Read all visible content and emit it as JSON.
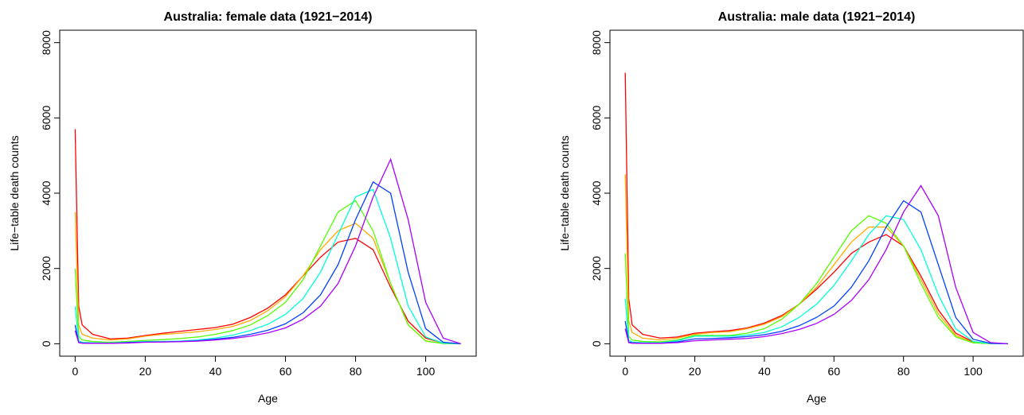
{
  "chart_data": [
    {
      "type": "line",
      "title": "Australia: female data (1921−2014)",
      "xlabel": "Age",
      "ylabel": "Life−table death counts",
      "x": [
        0,
        1,
        2,
        5,
        10,
        15,
        20,
        25,
        30,
        35,
        40,
        45,
        50,
        55,
        60,
        65,
        70,
        75,
        80,
        85,
        90,
        95,
        100,
        105,
        110
      ],
      "xlim": [
        -4.4,
        114.4
      ],
      "ylim": [
        -330,
        8330
      ],
      "xticks": [
        0,
        20,
        40,
        60,
        80,
        100
      ],
      "yticks": [
        0,
        2000,
        4000,
        6000,
        8000
      ],
      "series": [
        {
          "color": "#FF0000",
          "values": [
            5700,
            1000,
            500,
            250,
            130,
            150,
            220,
            280,
            330,
            380,
            430,
            520,
            700,
            950,
            1300,
            1800,
            2300,
            2700,
            2800,
            2500,
            1500,
            600,
            150,
            20,
            0
          ]
        },
        {
          "color": "#FFAA00",
          "values": [
            3500,
            500,
            250,
            150,
            100,
            130,
            200,
            250,
            280,
            320,
            380,
            460,
            620,
            880,
            1250,
            1800,
            2500,
            3000,
            3200,
            2800,
            1600,
            500,
            80,
            5,
            0
          ]
        },
        {
          "color": "#55FF00",
          "values": [
            2000,
            200,
            100,
            60,
            40,
            60,
            90,
            110,
            140,
            180,
            250,
            350,
            500,
            750,
            1100,
            1700,
            2600,
            3500,
            3800,
            3000,
            1600,
            500,
            70,
            5,
            0
          ]
        },
        {
          "color": "#00FFD5",
          "values": [
            1000,
            80,
            40,
            25,
            20,
            40,
            60,
            60,
            70,
            100,
            150,
            230,
            350,
            520,
            780,
            1200,
            1900,
            2900,
            3900,
            4100,
            2800,
            1000,
            180,
            15,
            0
          ]
        },
        {
          "color": "#0040FF",
          "values": [
            500,
            40,
            20,
            15,
            12,
            30,
            45,
            50,
            60,
            80,
            120,
            170,
            250,
            360,
            530,
            820,
            1300,
            2100,
            3300,
            4300,
            4000,
            1900,
            400,
            40,
            0
          ]
        },
        {
          "color": "#AA00FF",
          "values": [
            350,
            30,
            15,
            10,
            10,
            20,
            40,
            45,
            55,
            70,
            100,
            140,
            200,
            290,
            420,
            650,
            1000,
            1600,
            2600,
            3900,
            4900,
            3300,
            1100,
            150,
            0
          ]
        }
      ]
    },
    {
      "type": "line",
      "title": "Australia: male data (1921−2014)",
      "xlabel": "Age",
      "ylabel": "Life−table death counts",
      "x": [
        0,
        1,
        2,
        5,
        10,
        15,
        20,
        25,
        30,
        35,
        40,
        45,
        50,
        55,
        60,
        65,
        70,
        75,
        80,
        85,
        90,
        95,
        100,
        105,
        110
      ],
      "xlim": [
        -4.4,
        114.4
      ],
      "ylim": [
        -330,
        8330
      ],
      "xticks": [
        0,
        20,
        40,
        60,
        80,
        100
      ],
      "yticks": [
        0,
        2000,
        4000,
        6000,
        8000
      ],
      "series": [
        {
          "color": "#FF0000",
          "values": [
            7200,
            1200,
            500,
            250,
            150,
            180,
            280,
            320,
            350,
            420,
            550,
            750,
            1050,
            1450,
            1900,
            2400,
            2700,
            2900,
            2600,
            1800,
            900,
            280,
            50,
            5,
            0
          ]
        },
        {
          "color": "#FFAA00",
          "values": [
            4500,
            600,
            300,
            150,
            100,
            150,
            250,
            300,
            320,
            400,
            520,
            720,
            1050,
            1500,
            2100,
            2700,
            3100,
            3100,
            2600,
            1700,
            800,
            220,
            30,
            2,
            0
          ]
        },
        {
          "color": "#55FF00",
          "values": [
            2400,
            200,
            100,
            60,
            50,
            100,
            220,
            220,
            220,
            280,
            400,
            650,
            1050,
            1600,
            2300,
            3000,
            3400,
            3200,
            2600,
            1600,
            700,
            180,
            25,
            2,
            0
          ]
        },
        {
          "color": "#00FFD5",
          "values": [
            1200,
            90,
            45,
            30,
            25,
            80,
            200,
            200,
            200,
            230,
            300,
            450,
            700,
            1050,
            1550,
            2200,
            2900,
            3400,
            3300,
            2500,
            1300,
            400,
            60,
            5,
            0
          ]
        },
        {
          "color": "#0040FF",
          "values": [
            600,
            45,
            25,
            15,
            15,
            50,
            130,
            140,
            160,
            190,
            240,
            330,
            480,
            700,
            1000,
            1500,
            2200,
            3100,
            3800,
            3500,
            2100,
            700,
            120,
            10,
            0
          ]
        },
        {
          "color": "#AA00FF",
          "values": [
            400,
            30,
            15,
            10,
            10,
            30,
            80,
            100,
            120,
            140,
            190,
            270,
            380,
            540,
            780,
            1150,
            1700,
            2500,
            3500,
            4200,
            3400,
            1500,
            300,
            30,
            0
          ]
        }
      ]
    }
  ]
}
